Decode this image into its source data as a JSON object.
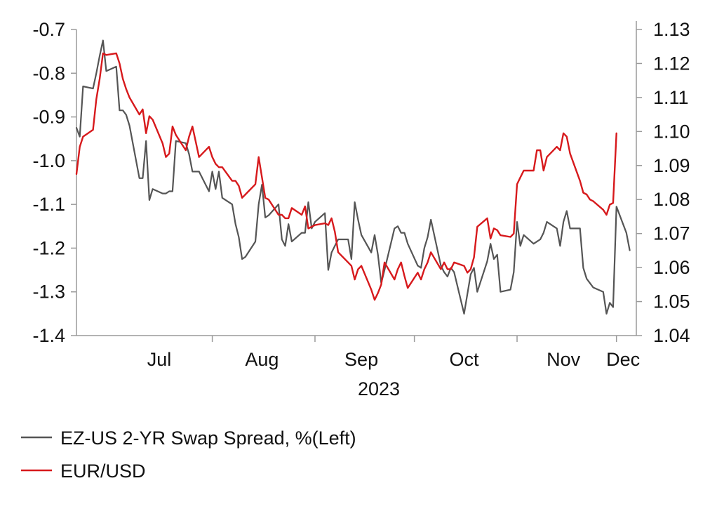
{
  "chart_data": {
    "type": "line",
    "title": "",
    "x_axis": {
      "ticks": [
        "Jul",
        "Aug",
        "Sep",
        "Oct",
        "Nov",
        "Dec"
      ],
      "year_label": "2023",
      "range": [
        "2023-06-21",
        "2023-12-07"
      ]
    },
    "left_axis": {
      "ticks": [
        "-0.7",
        "-0.8",
        "-0.9",
        "-1.0",
        "-1.1",
        "-1.2",
        "-1.3",
        "-1.4"
      ],
      "range": [
        -1.4,
        -0.7
      ]
    },
    "right_axis": {
      "ticks": [
        "1.13",
        "1.12",
        "1.11",
        "1.10",
        "1.09",
        "1.08",
        "1.07",
        "1.06",
        "1.05",
        "1.04"
      ],
      "range": [
        1.04,
        1.13
      ]
    },
    "grid": false,
    "legend_position": "bottom-left",
    "series": [
      {
        "name": "EZ-US 2-YR Swap Spread, %(Left)",
        "axis": "left",
        "color": "#555555",
        "points": [
          [
            "2023-06-21",
            -0.925
          ],
          [
            "2023-06-22",
            -0.945
          ],
          [
            "2023-06-23",
            -0.83
          ],
          [
            "2023-06-26",
            -0.835
          ],
          [
            "2023-06-27",
            -0.8
          ],
          [
            "2023-06-28",
            -0.76
          ],
          [
            "2023-06-29",
            -0.725
          ],
          [
            "2023-06-30",
            -0.795
          ],
          [
            "2023-07-03",
            -0.785
          ],
          [
            "2023-07-04",
            -0.885
          ],
          [
            "2023-07-05",
            -0.885
          ],
          [
            "2023-07-06",
            -0.895
          ],
          [
            "2023-07-07",
            -0.92
          ],
          [
            "2023-07-10",
            -1.04
          ],
          [
            "2023-07-11",
            -1.04
          ],
          [
            "2023-07-12",
            -0.955
          ],
          [
            "2023-07-13",
            -1.09
          ],
          [
            "2023-07-14",
            -1.065
          ],
          [
            "2023-07-17",
            -1.075
          ],
          [
            "2023-07-18",
            -1.075
          ],
          [
            "2023-07-19",
            -1.07
          ],
          [
            "2023-07-20",
            -1.07
          ],
          [
            "2023-07-21",
            -0.955
          ],
          [
            "2023-07-24",
            -0.96
          ],
          [
            "2023-07-25",
            -0.985
          ],
          [
            "2023-07-26",
            -1.025
          ],
          [
            "2023-07-27",
            -1.025
          ],
          [
            "2023-07-28",
            -1.025
          ],
          [
            "2023-07-31",
            -1.07
          ],
          [
            "2023-08-01",
            -1.025
          ],
          [
            "2023-08-02",
            -1.065
          ],
          [
            "2023-08-03",
            -1.025
          ],
          [
            "2023-08-04",
            -1.085
          ],
          [
            "2023-08-07",
            -1.1
          ],
          [
            "2023-08-08",
            -1.145
          ],
          [
            "2023-08-09",
            -1.175
          ],
          [
            "2023-08-10",
            -1.225
          ],
          [
            "2023-08-11",
            -1.22
          ],
          [
            "2023-08-14",
            -1.185
          ],
          [
            "2023-08-15",
            -1.1
          ],
          [
            "2023-08-16",
            -1.055
          ],
          [
            "2023-08-17",
            -1.13
          ],
          [
            "2023-08-18",
            -1.125
          ],
          [
            "2023-08-21",
            -1.1
          ],
          [
            "2023-08-22",
            -1.18
          ],
          [
            "2023-08-23",
            -1.195
          ],
          [
            "2023-08-24",
            -1.145
          ],
          [
            "2023-08-25",
            -1.185
          ],
          [
            "2023-08-28",
            -1.165
          ],
          [
            "2023-08-29",
            -1.165
          ],
          [
            "2023-08-30",
            -1.095
          ],
          [
            "2023-08-31",
            -1.155
          ],
          [
            "2023-09-01",
            -1.14
          ],
          [
            "2023-09-04",
            -1.12
          ],
          [
            "2023-09-05",
            -1.25
          ],
          [
            "2023-09-06",
            -1.21
          ],
          [
            "2023-09-07",
            -1.195
          ],
          [
            "2023-09-08",
            -1.18
          ],
          [
            "2023-09-11",
            -1.18
          ],
          [
            "2023-09-12",
            -1.225
          ],
          [
            "2023-09-13",
            -1.095
          ],
          [
            "2023-09-14",
            -1.135
          ],
          [
            "2023-09-15",
            -1.17
          ],
          [
            "2023-09-18",
            -1.21
          ],
          [
            "2023-09-19",
            -1.17
          ],
          [
            "2023-09-20",
            -1.215
          ],
          [
            "2023-09-21",
            -1.28
          ],
          [
            "2023-09-22",
            -1.25
          ],
          [
            "2023-09-25",
            -1.155
          ],
          [
            "2023-09-26",
            -1.15
          ],
          [
            "2023-09-27",
            -1.165
          ],
          [
            "2023-09-28",
            -1.165
          ],
          [
            "2023-09-29",
            -1.19
          ],
          [
            "2023-10-02",
            -1.24
          ],
          [
            "2023-10-03",
            -1.245
          ],
          [
            "2023-10-04",
            -1.2
          ],
          [
            "2023-10-05",
            -1.175
          ],
          [
            "2023-10-06",
            -1.135
          ],
          [
            "2023-10-09",
            -1.24
          ],
          [
            "2023-10-10",
            -1.255
          ],
          [
            "2023-10-11",
            -1.265
          ],
          [
            "2023-10-12",
            -1.245
          ],
          [
            "2023-10-13",
            -1.255
          ],
          [
            "2023-10-16",
            -1.35
          ],
          [
            "2023-10-17",
            -1.305
          ],
          [
            "2023-10-18",
            -1.26
          ],
          [
            "2023-10-19",
            -1.245
          ],
          [
            "2023-10-20",
            -1.3
          ],
          [
            "2023-10-23",
            -1.23
          ],
          [
            "2023-10-24",
            -1.19
          ],
          [
            "2023-10-25",
            -1.225
          ],
          [
            "2023-10-26",
            -1.215
          ],
          [
            "2023-10-27",
            -1.3
          ],
          [
            "2023-10-30",
            -1.295
          ],
          [
            "2023-10-31",
            -1.255
          ],
          [
            "2023-11-01",
            -1.14
          ],
          [
            "2023-11-02",
            -1.195
          ],
          [
            "2023-11-03",
            -1.17
          ],
          [
            "2023-11-06",
            -1.19
          ],
          [
            "2023-11-07",
            -1.185
          ],
          [
            "2023-11-08",
            -1.18
          ],
          [
            "2023-11-09",
            -1.165
          ],
          [
            "2023-11-10",
            -1.14
          ],
          [
            "2023-11-13",
            -1.155
          ],
          [
            "2023-11-14",
            -1.195
          ],
          [
            "2023-11-15",
            -1.14
          ],
          [
            "2023-11-16",
            -1.115
          ],
          [
            "2023-11-17",
            -1.155
          ],
          [
            "2023-11-20",
            -1.155
          ],
          [
            "2023-11-21",
            -1.245
          ],
          [
            "2023-11-22",
            -1.27
          ],
          [
            "2023-11-23",
            -1.28
          ],
          [
            "2023-11-24",
            -1.29
          ],
          [
            "2023-11-27",
            -1.3
          ],
          [
            "2023-11-28",
            -1.35
          ],
          [
            "2023-11-29",
            -1.325
          ],
          [
            "2023-11-30",
            -1.335
          ],
          [
            "2023-12-01",
            -1.105
          ],
          [
            "2023-12-04",
            -1.165
          ],
          [
            "2023-12-05",
            -1.205
          ]
        ]
      },
      {
        "name": "EUR/USD",
        "axis": "right",
        "color": "#d7191c",
        "points": [
          [
            "2023-06-21",
            1.0875
          ],
          [
            "2023-06-22",
            1.0955
          ],
          [
            "2023-06-23",
            1.0985
          ],
          [
            "2023-06-26",
            1.1005
          ],
          [
            "2023-06-27",
            1.1095
          ],
          [
            "2023-06-28",
            1.1155
          ],
          [
            "2023-06-29",
            1.123
          ],
          [
            "2023-06-30",
            1.1225
          ],
          [
            "2023-07-03",
            1.123
          ],
          [
            "2023-07-04",
            1.12
          ],
          [
            "2023-07-05",
            1.1155
          ],
          [
            "2023-07-06",
            1.1125
          ],
          [
            "2023-07-07",
            1.11
          ],
          [
            "2023-07-10",
            1.105
          ],
          [
            "2023-07-11",
            1.1065
          ],
          [
            "2023-07-12",
            1.0995
          ],
          [
            "2023-07-13",
            1.1045
          ],
          [
            "2023-07-14",
            1.1035
          ],
          [
            "2023-07-17",
            1.0965
          ],
          [
            "2023-07-18",
            1.0925
          ],
          [
            "2023-07-19",
            1.0935
          ],
          [
            "2023-07-20",
            1.1015
          ],
          [
            "2023-07-21",
            1.099
          ],
          [
            "2023-07-24",
            1.0945
          ],
          [
            "2023-07-25",
            1.0985
          ],
          [
            "2023-07-26",
            1.1015
          ],
          [
            "2023-07-27",
            1.097
          ],
          [
            "2023-07-28",
            1.0925
          ],
          [
            "2023-07-31",
            1.0955
          ],
          [
            "2023-08-01",
            1.0925
          ],
          [
            "2023-08-02",
            1.0905
          ],
          [
            "2023-08-03",
            1.0895
          ],
          [
            "2023-08-04",
            1.0895
          ],
          [
            "2023-08-07",
            1.0855
          ],
          [
            "2023-08-08",
            1.0855
          ],
          [
            "2023-08-09",
            1.084
          ],
          [
            "2023-08-10",
            1.0805
          ],
          [
            "2023-08-11",
            1.0815
          ],
          [
            "2023-08-14",
            1.0845
          ],
          [
            "2023-08-15",
            1.0925
          ],
          [
            "2023-08-16",
            1.0865
          ],
          [
            "2023-08-17",
            1.0805
          ],
          [
            "2023-08-18",
            1.08
          ],
          [
            "2023-08-21",
            1.0755
          ],
          [
            "2023-08-22",
            1.0755
          ],
          [
            "2023-08-23",
            1.0745
          ],
          [
            "2023-08-24",
            1.0745
          ],
          [
            "2023-08-25",
            1.0775
          ],
          [
            "2023-08-28",
            1.0755
          ],
          [
            "2023-08-29",
            1.078
          ],
          [
            "2023-08-30",
            1.0715
          ],
          [
            "2023-08-31",
            1.072
          ],
          [
            "2023-09-01",
            1.0725
          ],
          [
            "2023-09-04",
            1.073
          ],
          [
            "2023-09-05",
            1.0725
          ],
          [
            "2023-09-06",
            1.0745
          ],
          [
            "2023-09-07",
            1.0705
          ],
          [
            "2023-09-08",
            1.0645
          ],
          [
            "2023-09-11",
            1.0615
          ],
          [
            "2023-09-12",
            1.0605
          ],
          [
            "2023-09-13",
            1.0565
          ],
          [
            "2023-09-14",
            1.0595
          ],
          [
            "2023-09-15",
            1.0605
          ],
          [
            "2023-09-18",
            1.0535
          ],
          [
            "2023-09-19",
            1.0505
          ],
          [
            "2023-09-20",
            1.0525
          ],
          [
            "2023-09-21",
            1.055
          ],
          [
            "2023-09-22",
            1.0615
          ],
          [
            "2023-09-25",
            1.0565
          ],
          [
            "2023-09-26",
            1.0595
          ],
          [
            "2023-09-27",
            1.0615
          ],
          [
            "2023-09-28",
            1.0575
          ],
          [
            "2023-09-29",
            1.054
          ],
          [
            "2023-10-02",
            1.0585
          ],
          [
            "2023-10-03",
            1.0565
          ],
          [
            "2023-10-04",
            1.0595
          ],
          [
            "2023-10-05",
            1.0615
          ],
          [
            "2023-10-06",
            1.0645
          ],
          [
            "2023-10-09",
            1.0595
          ],
          [
            "2023-10-10",
            1.0615
          ],
          [
            "2023-10-11",
            1.0595
          ],
          [
            "2023-10-12",
            1.0595
          ],
          [
            "2023-10-13",
            1.0615
          ],
          [
            "2023-10-16",
            1.0605
          ],
          [
            "2023-10-17",
            1.0585
          ],
          [
            "2023-10-18",
            1.0595
          ],
          [
            "2023-10-19",
            1.063
          ],
          [
            "2023-10-20",
            1.072
          ],
          [
            "2023-10-23",
            1.0745
          ],
          [
            "2023-10-24",
            1.0685
          ],
          [
            "2023-10-25",
            1.0715
          ],
          [
            "2023-10-26",
            1.071
          ],
          [
            "2023-10-27",
            1.0695
          ],
          [
            "2023-10-30",
            1.069
          ],
          [
            "2023-10-31",
            1.07
          ],
          [
            "2023-11-01",
            1.0845
          ],
          [
            "2023-11-02",
            1.0865
          ],
          [
            "2023-11-03",
            1.0885
          ],
          [
            "2023-11-06",
            1.0885
          ],
          [
            "2023-11-07",
            1.0945
          ],
          [
            "2023-11-08",
            1.0945
          ],
          [
            "2023-11-09",
            1.0885
          ],
          [
            "2023-11-10",
            1.0925
          ],
          [
            "2023-11-13",
            1.0955
          ],
          [
            "2023-11-14",
            1.0945
          ],
          [
            "2023-11-15",
            1.0995
          ],
          [
            "2023-11-16",
            1.0985
          ],
          [
            "2023-11-17",
            1.0935
          ],
          [
            "2023-11-20",
            1.0855
          ],
          [
            "2023-11-21",
            1.082
          ],
          [
            "2023-11-22",
            1.0815
          ],
          [
            "2023-11-23",
            1.08
          ],
          [
            "2023-11-24",
            1.0795
          ],
          [
            "2023-11-27",
            1.077
          ],
          [
            "2023-11-28",
            1.0755
          ],
          [
            "2023-11-29",
            1.0785
          ],
          [
            "2023-11-30",
            1.079
          ],
          [
            "2023-12-01",
            1.0995
          ]
        ]
      }
    ]
  }
}
